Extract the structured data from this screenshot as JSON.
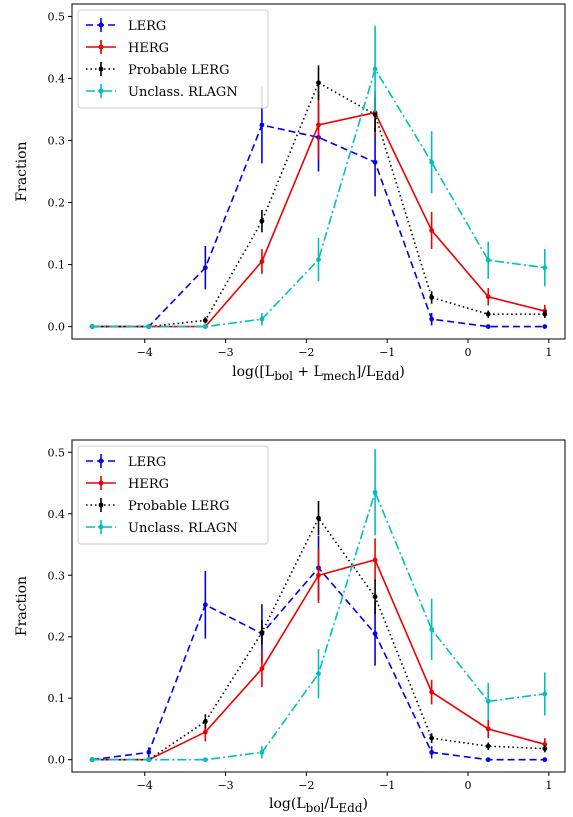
{
  "colors": {
    "LERG": "#0000ee",
    "HERG": "#ee0000",
    "Probable LERG": "#000000",
    "Unclass. RLAGN": "#00bfbf"
  },
  "chart_data": [
    {
      "type": "line",
      "ylabel": "Fraction",
      "xlabel_parts": [
        "log([L",
        "bol",
        " + L",
        "mech",
        "]/L",
        "Edd",
        ")"
      ],
      "xlim": [
        -4.9,
        1.2
      ],
      "ylim": [
        -0.02,
        0.52
      ],
      "xticks": [
        -4,
        -3,
        -2,
        -1,
        0,
        1
      ],
      "yticks": [
        0.0,
        0.1,
        0.2,
        0.3,
        0.4,
        0.5
      ],
      "legend": "top-left",
      "x": [
        -4.65,
        -3.95,
        -3.25,
        -2.55,
        -1.85,
        -1.15,
        -0.45,
        0.25,
        0.95
      ],
      "series": [
        {
          "name": "LERG",
          "style": "dashed",
          "values": [
            0,
            0,
            0.095,
            0.325,
            0.305,
            0.265,
            0.012,
            0,
            0
          ],
          "err": [
            0,
            0,
            0.035,
            0.062,
            0.055,
            0.055,
            0.01,
            0,
            0
          ]
        },
        {
          "name": "HERG",
          "style": "solid",
          "values": [
            0,
            0,
            0,
            0.105,
            0.325,
            0.345,
            0.155,
            0.048,
            0.025
          ],
          "err": [
            0,
            0,
            0,
            0.02,
            0.055,
            0.035,
            0.03,
            0.014,
            0.01
          ]
        },
        {
          "name": "Probable LERG",
          "style": "dotted",
          "values": [
            0,
            0,
            0.01,
            0.17,
            0.393,
            0.342,
            0.047,
            0.02,
            0.02
          ],
          "err": [
            0,
            0,
            0.005,
            0.018,
            0.028,
            0.028,
            0.01,
            0.006,
            0.006
          ]
        },
        {
          "name": "Unclass. RLAGN",
          "style": "dashdot",
          "values": [
            0,
            0,
            0,
            0.012,
            0.108,
            0.415,
            0.265,
            0.107,
            0.095
          ],
          "err": [
            0,
            0,
            0,
            0.01,
            0.035,
            0.07,
            0.05,
            0.03,
            0.03
          ]
        }
      ]
    },
    {
      "type": "line",
      "ylabel": "Fraction",
      "xlabel_parts": [
        "log(L",
        "bol",
        "/L",
        "Edd",
        ")"
      ],
      "xlim": [
        -4.9,
        1.2
      ],
      "ylim": [
        -0.02,
        0.52
      ],
      "xticks": [
        -4,
        -3,
        -2,
        -1,
        0,
        1
      ],
      "yticks": [
        0.0,
        0.1,
        0.2,
        0.3,
        0.4,
        0.5
      ],
      "legend": "top-left",
      "x": [
        -4.65,
        -3.95,
        -3.25,
        -2.55,
        -1.85,
        -1.15,
        -0.45,
        0.25,
        0.95
      ],
      "series": [
        {
          "name": "LERG",
          "style": "dashed",
          "values": [
            0,
            0.012,
            0.252,
            0.205,
            0.312,
            0.205,
            0.012,
            0,
            0
          ],
          "err": [
            0,
            0.008,
            0.055,
            0.048,
            0.052,
            0.052,
            0.01,
            0,
            0
          ]
        },
        {
          "name": "HERG",
          "style": "solid",
          "values": [
            0,
            0,
            0.045,
            0.148,
            0.3,
            0.325,
            0.11,
            0.05,
            0.025
          ],
          "err": [
            0,
            0,
            0.015,
            0.03,
            0.045,
            0.035,
            0.02,
            0.015,
            0.01
          ]
        },
        {
          "name": "Probable LERG",
          "style": "dotted",
          "values": [
            0,
            0,
            0.062,
            0.207,
            0.393,
            0.265,
            0.035,
            0.022,
            0.018
          ],
          "err": [
            0,
            0,
            0.012,
            0.02,
            0.028,
            0.028,
            0.008,
            0.006,
            0.006
          ]
        },
        {
          "name": "Unclass. RLAGN",
          "style": "dashdot",
          "values": [
            0,
            0,
            0,
            0.012,
            0.14,
            0.435,
            0.212,
            0.095,
            0.107
          ],
          "err": [
            0,
            0,
            0,
            0.01,
            0.04,
            0.07,
            0.05,
            0.03,
            0.035
          ]
        }
      ]
    }
  ]
}
